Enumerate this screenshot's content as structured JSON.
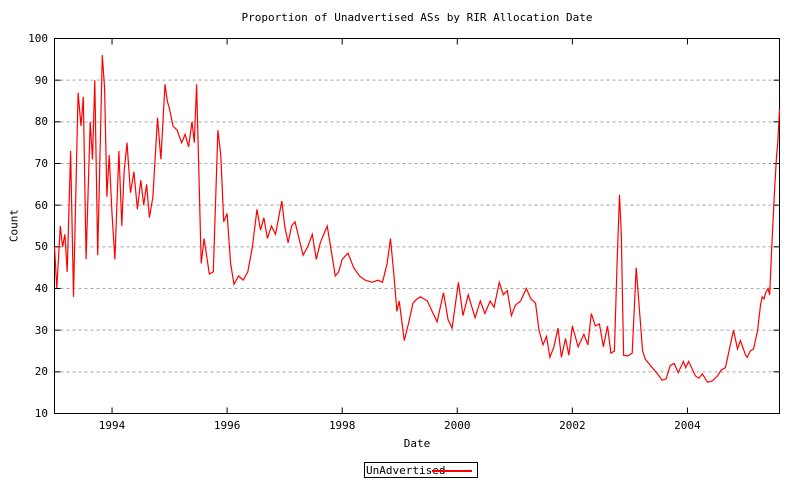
{
  "title": "Proportion of Unadvertised ASs by RIR Allocation Date",
  "legend": {
    "entries": [
      {
        "label": "UnAdvertised",
        "color": "#ff0000"
      }
    ],
    "position": "bottom-center"
  },
  "colors": {
    "line": "#ff0000",
    "grid": "#a8a8a8",
    "border": "#000000",
    "background": "#ffffff",
    "text": "#000000"
  },
  "chart_data": {
    "type": "line",
    "title": "Proportion of Unadvertised ASs by RIR Allocation Date",
    "xlabel": "Date",
    "ylabel": "Count",
    "xlim": [
      1993,
      2005.6
    ],
    "ylim": [
      10,
      100
    ],
    "xticks": [
      1994,
      1996,
      1998,
      2000,
      2002,
      2004
    ],
    "yticks": [
      10,
      20,
      30,
      40,
      50,
      60,
      70,
      80,
      90,
      100
    ],
    "grid": true,
    "legend_position": "bottom-center",
    "series": [
      {
        "name": "UnAdvertised",
        "color": "#ff0000",
        "points": [
          [
            1993.0,
            50
          ],
          [
            1993.04,
            40
          ],
          [
            1993.1,
            55
          ],
          [
            1993.14,
            50
          ],
          [
            1993.18,
            53
          ],
          [
            1993.22,
            44
          ],
          [
            1993.28,
            73
          ],
          [
            1993.33,
            38
          ],
          [
            1993.41,
            87
          ],
          [
            1993.46,
            79
          ],
          [
            1993.5,
            86
          ],
          [
            1993.55,
            47
          ],
          [
            1993.62,
            80
          ],
          [
            1993.66,
            71
          ],
          [
            1993.7,
            90
          ],
          [
            1993.75,
            48
          ],
          [
            1993.83,
            96
          ],
          [
            1993.87,
            88
          ],
          [
            1993.91,
            62
          ],
          [
            1993.95,
            72
          ],
          [
            1994.0,
            58
          ],
          [
            1994.05,
            47
          ],
          [
            1994.12,
            73
          ],
          [
            1994.17,
            55
          ],
          [
            1994.21,
            68
          ],
          [
            1994.26,
            75
          ],
          [
            1994.32,
            63
          ],
          [
            1994.38,
            68
          ],
          [
            1994.44,
            59
          ],
          [
            1994.5,
            66
          ],
          [
            1994.55,
            60
          ],
          [
            1994.6,
            65
          ],
          [
            1994.65,
            57
          ],
          [
            1994.71,
            62
          ],
          [
            1994.79,
            81
          ],
          [
            1994.85,
            71
          ],
          [
            1994.92,
            89
          ],
          [
            1994.96,
            85
          ],
          [
            1995.0,
            83
          ],
          [
            1995.06,
            79
          ],
          [
            1995.13,
            78
          ],
          [
            1995.21,
            75
          ],
          [
            1995.27,
            77
          ],
          [
            1995.33,
            74
          ],
          [
            1995.39,
            80
          ],
          [
            1995.43,
            75
          ],
          [
            1995.47,
            89
          ],
          [
            1995.55,
            46
          ],
          [
            1995.6,
            52
          ],
          [
            1995.69,
            43.5
          ],
          [
            1995.76,
            44
          ],
          [
            1995.84,
            78
          ],
          [
            1995.89,
            72
          ],
          [
            1995.94,
            56
          ],
          [
            1996.0,
            58
          ],
          [
            1996.06,
            46
          ],
          [
            1996.12,
            41
          ],
          [
            1996.2,
            43
          ],
          [
            1996.28,
            42
          ],
          [
            1996.36,
            44
          ],
          [
            1996.44,
            50
          ],
          [
            1996.52,
            59
          ],
          [
            1996.58,
            54
          ],
          [
            1996.64,
            57
          ],
          [
            1996.7,
            52
          ],
          [
            1996.77,
            55
          ],
          [
            1996.84,
            53
          ],
          [
            1996.95,
            61
          ],
          [
            1997.0,
            55
          ],
          [
            1997.06,
            51
          ],
          [
            1997.12,
            55
          ],
          [
            1997.18,
            56
          ],
          [
            1997.25,
            52
          ],
          [
            1997.32,
            48
          ],
          [
            1997.4,
            50
          ],
          [
            1997.48,
            53
          ],
          [
            1997.55,
            47
          ],
          [
            1997.62,
            51
          ],
          [
            1997.74,
            55
          ],
          [
            1997.81,
            49
          ],
          [
            1997.88,
            43
          ],
          [
            1997.94,
            44
          ],
          [
            1998.0,
            47
          ],
          [
            1998.1,
            48.5
          ],
          [
            1998.2,
            45
          ],
          [
            1998.3,
            43
          ],
          [
            1998.4,
            42
          ],
          [
            1998.52,
            41.5
          ],
          [
            1998.62,
            42
          ],
          [
            1998.7,
            41.5
          ],
          [
            1998.78,
            46
          ],
          [
            1998.84,
            52
          ],
          [
            1998.9,
            43
          ],
          [
            1998.95,
            34.5
          ],
          [
            1998.99,
            37
          ],
          [
            1999.08,
            27.5
          ],
          [
            1999.15,
            31.5
          ],
          [
            1999.23,
            36.5
          ],
          [
            1999.3,
            37.5
          ],
          [
            1999.36,
            38
          ],
          [
            1999.48,
            37
          ],
          [
            1999.58,
            34
          ],
          [
            1999.65,
            32
          ],
          [
            1999.76,
            39
          ],
          [
            1999.84,
            32.5
          ],
          [
            1999.91,
            30.5
          ],
          [
            2000.02,
            41.5
          ],
          [
            2000.1,
            33.5
          ],
          [
            2000.19,
            38.5
          ],
          [
            2000.31,
            33
          ],
          [
            2000.4,
            37
          ],
          [
            2000.48,
            34
          ],
          [
            2000.57,
            37
          ],
          [
            2000.64,
            35.5
          ],
          [
            2000.73,
            41.5
          ],
          [
            2000.8,
            38.5
          ],
          [
            2000.87,
            39.5
          ],
          [
            2000.94,
            33.5
          ],
          [
            2001.01,
            36
          ],
          [
            2001.1,
            37
          ],
          [
            2001.2,
            40
          ],
          [
            2001.28,
            37.5
          ],
          [
            2001.36,
            36.5
          ],
          [
            2001.42,
            30
          ],
          [
            2001.49,
            26.5
          ],
          [
            2001.55,
            28.5
          ],
          [
            2001.61,
            23.5
          ],
          [
            2001.68,
            26
          ],
          [
            2001.75,
            30.5
          ],
          [
            2001.81,
            23.5
          ],
          [
            2001.88,
            28
          ],
          [
            2001.94,
            24
          ],
          [
            2002.0,
            31
          ],
          [
            2002.1,
            26
          ],
          [
            2002.2,
            29
          ],
          [
            2002.27,
            26.5
          ],
          [
            2002.33,
            34
          ],
          [
            2002.4,
            31
          ],
          [
            2002.47,
            31.5
          ],
          [
            2002.54,
            26
          ],
          [
            2002.61,
            31
          ],
          [
            2002.67,
            24.5
          ],
          [
            2002.73,
            25
          ],
          [
            2002.78,
            47
          ],
          [
            2002.82,
            62.5
          ],
          [
            2002.85,
            53
          ],
          [
            2002.89,
            24
          ],
          [
            2002.96,
            23.8
          ],
          [
            2003.04,
            24.5
          ],
          [
            2003.11,
            45
          ],
          [
            2003.22,
            25
          ],
          [
            2003.27,
            23
          ],
          [
            2003.39,
            21
          ],
          [
            2003.48,
            19.5
          ],
          [
            2003.56,
            18
          ],
          [
            2003.63,
            18.3
          ],
          [
            2003.7,
            21.5
          ],
          [
            2003.77,
            22
          ],
          [
            2003.84,
            19.8
          ],
          [
            2003.93,
            22.5
          ],
          [
            2003.97,
            21
          ],
          [
            2004.02,
            22.5
          ],
          [
            2004.14,
            19
          ],
          [
            2004.2,
            18.5
          ],
          [
            2004.26,
            19.5
          ],
          [
            2004.35,
            17.5
          ],
          [
            2004.43,
            17.8
          ],
          [
            2004.52,
            19
          ],
          [
            2004.59,
            20.5
          ],
          [
            2004.66,
            21
          ],
          [
            2004.8,
            30
          ],
          [
            2004.87,
            25.5
          ],
          [
            2004.92,
            27.5
          ],
          [
            2005.01,
            24
          ],
          [
            2005.04,
            23.5
          ],
          [
            2005.09,
            25
          ],
          [
            2005.15,
            25.5
          ],
          [
            2005.22,
            30
          ],
          [
            2005.27,
            36
          ],
          [
            2005.3,
            38
          ],
          [
            2005.33,
            37.5
          ],
          [
            2005.36,
            39
          ],
          [
            2005.4,
            40
          ],
          [
            2005.43,
            38.5
          ],
          [
            2005.46,
            48
          ],
          [
            2005.49,
            57
          ],
          [
            2005.52,
            65
          ],
          [
            2005.55,
            72
          ],
          [
            2005.57,
            75
          ],
          [
            2005.6,
            83
          ]
        ]
      }
    ]
  }
}
